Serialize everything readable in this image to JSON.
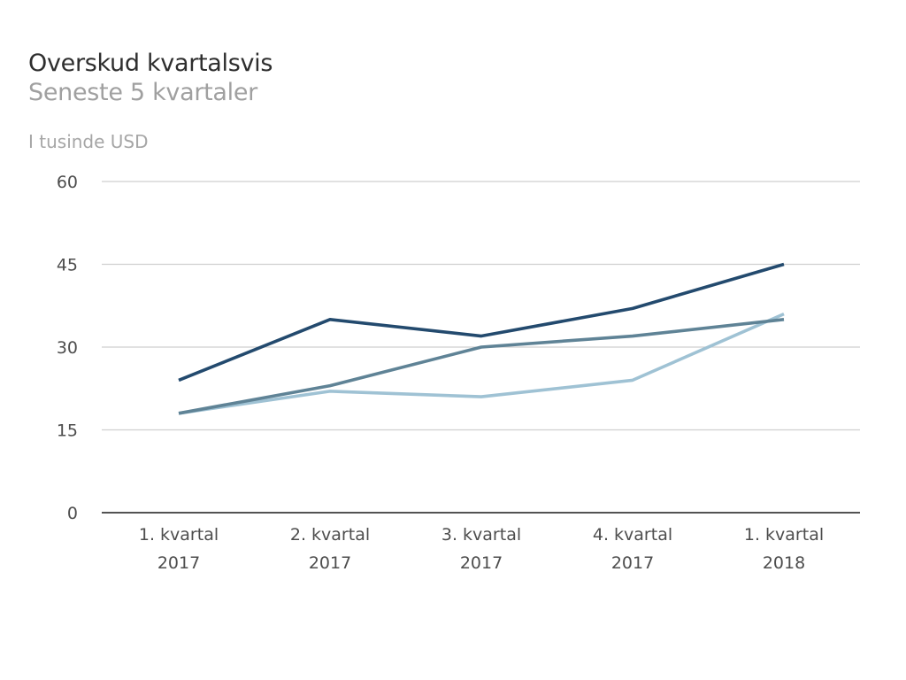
{
  "chart_data": {
    "type": "line",
    "title": "Overskud kvartalsvis",
    "subtitle": "Seneste 5 kvartaler",
    "unit_label": "I tusinde USD",
    "categories": [
      [
        "1. kvartal",
        "2017"
      ],
      [
        "2. kvartal",
        "2017"
      ],
      [
        "3. kvartal",
        "2017"
      ],
      [
        "4. kvartal",
        "2017"
      ],
      [
        "1. kvartal",
        "2018"
      ]
    ],
    "ylim": [
      0,
      60
    ],
    "yticks": [
      0,
      15,
      30,
      45,
      60
    ],
    "grid": true,
    "legend": "none",
    "series": [
      {
        "color": "#9fc2d4",
        "values": [
          18,
          22,
          21,
          24,
          36
        ]
      },
      {
        "color": "#5f8396",
        "values": [
          18,
          23,
          30,
          32,
          35
        ]
      },
      {
        "color": "#234a6e",
        "values": [
          24,
          35,
          32,
          37,
          45
        ]
      }
    ]
  }
}
